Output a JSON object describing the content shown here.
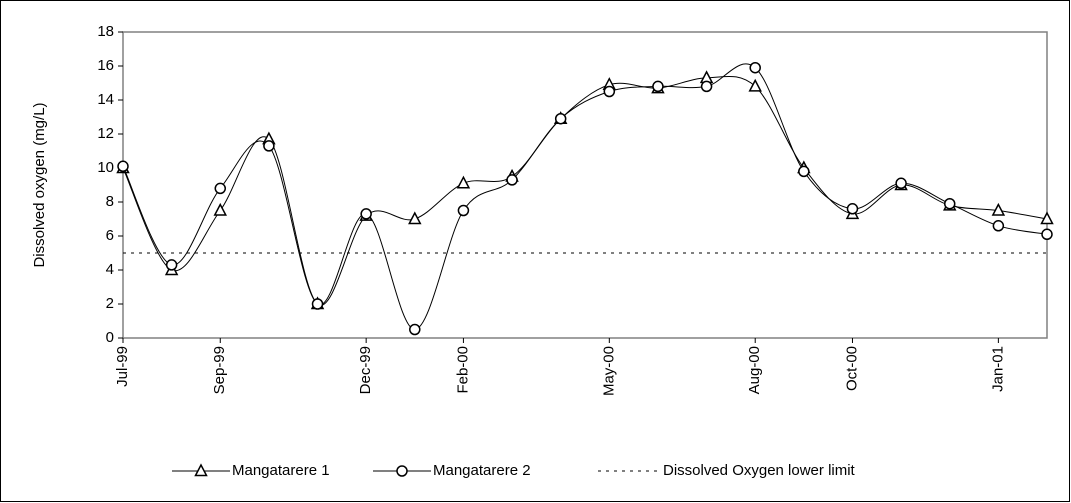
{
  "chart_data": {
    "type": "line",
    "y_label": "Dissolved oxygen (mg/L)",
    "x": [
      "Jul-99",
      "Aug-99",
      "Sep-99",
      "Oct-99",
      "Nov-99",
      "Dec-99",
      "Jan-00",
      "Feb-00",
      "Mar-00",
      "Apr-00",
      "May-00",
      "Jun-00",
      "Jul-00",
      "Aug-00",
      "Sep-00",
      "Oct-00",
      "Nov-00",
      "Dec-00",
      "Jan-01",
      "Feb-01"
    ],
    "series": [
      {
        "name": "Mangatarere 1",
        "color": "#000000",
        "marker": "triangle",
        "values": [
          10,
          4.0,
          7.5,
          11.7,
          2.0,
          7.2,
          7.0,
          9.1,
          9.5,
          12.9,
          14.9,
          14.7,
          15.3,
          14.8,
          10.0,
          7.3,
          9.0,
          7.8,
          7.5,
          7.0
        ]
      },
      {
        "name": "Mangatarere 2",
        "color": "#000000",
        "marker": "circle",
        "values": [
          10.1,
          4.3,
          8.8,
          11.3,
          2.0,
          7.3,
          0.5,
          7.5,
          9.3,
          12.9,
          14.5,
          14.8,
          14.8,
          15.9,
          9.8,
          7.6,
          9.1,
          7.9,
          6.6,
          6.1
        ]
      }
    ],
    "limit": {
      "name": "Dissolved Oxygen lower limit",
      "value": 5
    },
    "xlim": [
      "Jul-99",
      "Feb-01"
    ],
    "xticks": [
      "Jul-99",
      "Sep-99",
      "Dec-99",
      "Feb-00",
      "May-00",
      "Aug-00",
      "Oct-00",
      "Jan-01"
    ],
    "ylim": [
      0,
      18
    ],
    "yticks": [
      0,
      2,
      4,
      6,
      8,
      10,
      12,
      14,
      16,
      18
    ],
    "smooth": true
  }
}
